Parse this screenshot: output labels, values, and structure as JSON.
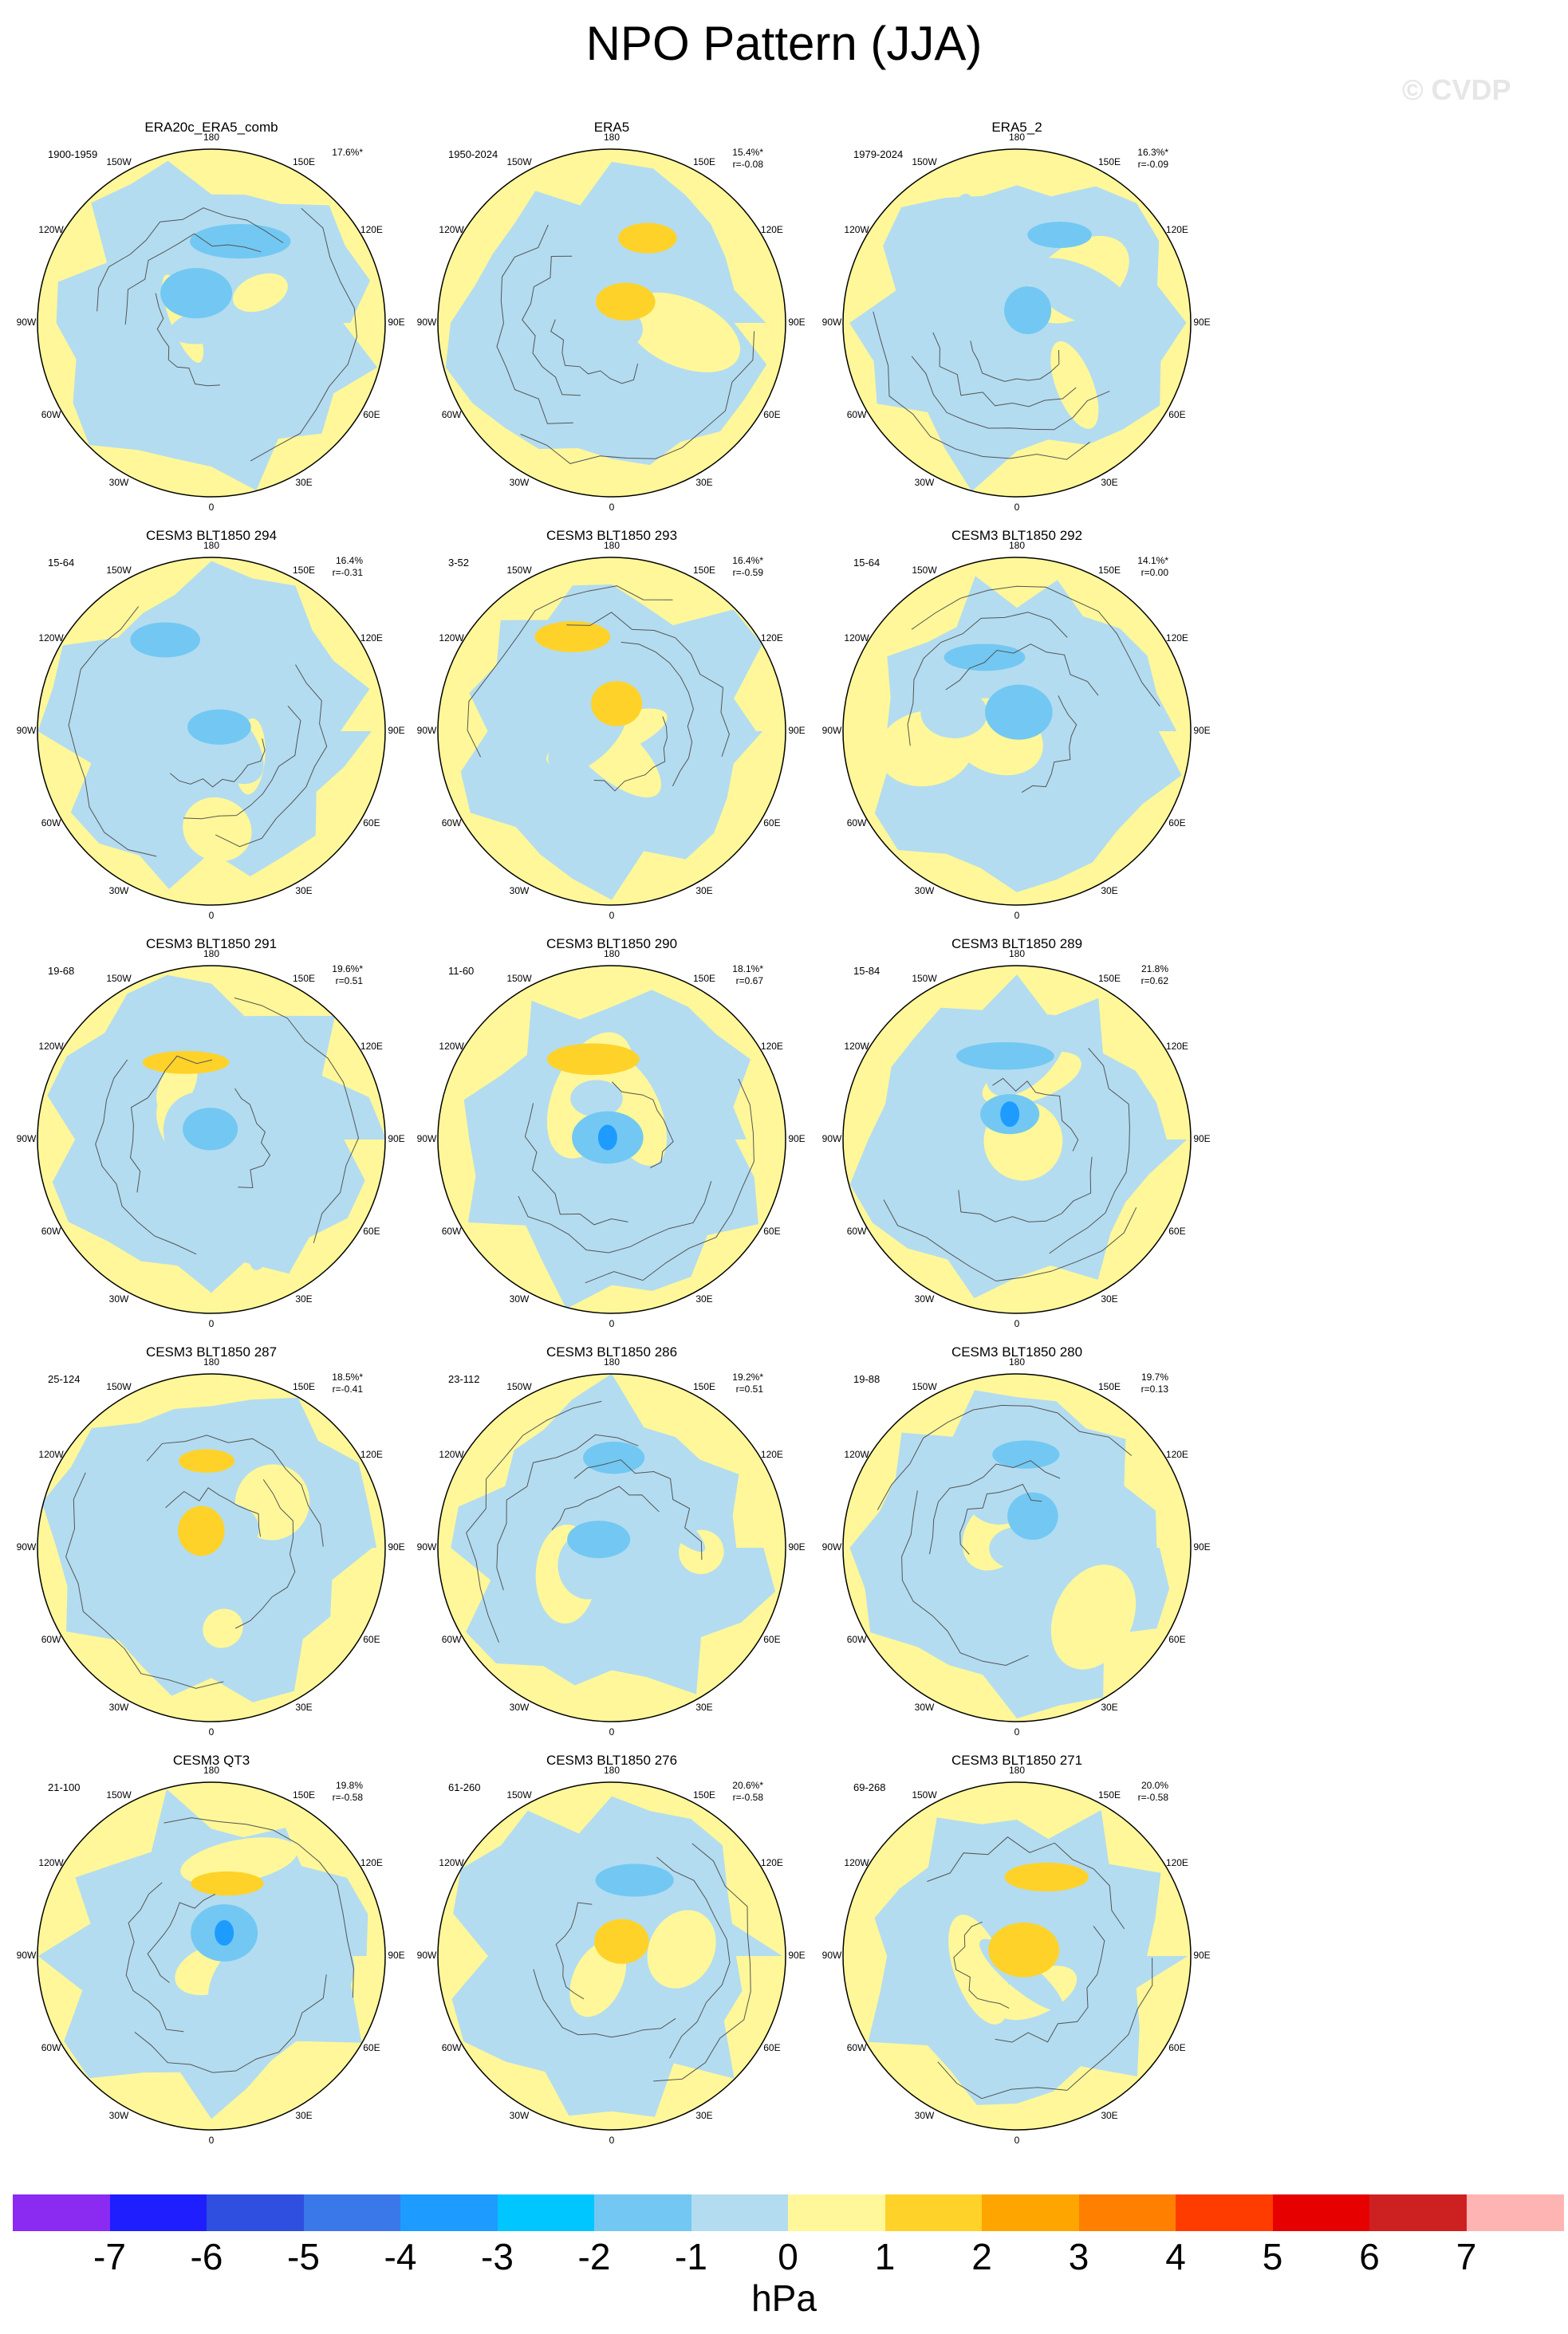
{
  "title": "NPO Pattern (JJA)",
  "watermark": "© CVDP",
  "longitude_labels": [
    "180",
    "150E",
    "120E",
    "90E",
    "60E",
    "30E",
    "0",
    "30W",
    "60W",
    "90W",
    "120W",
    "150W"
  ],
  "panels": [
    {
      "title": "ERA20c_ERA5_comb",
      "period": "1900-1959",
      "variance": "17.6%*",
      "corr": ""
    },
    {
      "title": "ERA5",
      "period": "1950-2024",
      "variance": "15.4%*",
      "corr": "r=-0.08"
    },
    {
      "title": "ERA5_2",
      "period": "1979-2024",
      "variance": "16.3%*",
      "corr": "r=-0.09"
    },
    {
      "title": "CESM3 BLT1850 294",
      "period": "15-64",
      "variance": "16.4%",
      "corr": "r=-0.31"
    },
    {
      "title": "CESM3 BLT1850 293",
      "period": "3-52",
      "variance": "16.4%*",
      "corr": "r=-0.59"
    },
    {
      "title": "CESM3 BLT1850 292",
      "period": "15-64",
      "variance": "14.1%*",
      "corr": "r=0.00"
    },
    {
      "title": "CESM3 BLT1850 291",
      "period": "19-68",
      "variance": "19.6%*",
      "corr": "r=0.51"
    },
    {
      "title": "CESM3 BLT1850 290",
      "period": "11-60",
      "variance": "18.1%*",
      "corr": "r=0.67"
    },
    {
      "title": "CESM3 BLT1850 289",
      "period": "15-84",
      "variance": "21.8%",
      "corr": "r=0.62"
    },
    {
      "title": "CESM3 BLT1850 287",
      "period": "25-124",
      "variance": "18.5%*",
      "corr": "r=-0.41"
    },
    {
      "title": "CESM3 BLT1850 286",
      "period": "23-112",
      "variance": "19.2%*",
      "corr": "r=0.51"
    },
    {
      "title": "CESM3 BLT1850 280",
      "period": "19-88",
      "variance": "19.7%",
      "corr": "r=0.13"
    },
    {
      "title": "CESM3 QT3",
      "period": "21-100",
      "variance": "19.8%",
      "corr": "r=-0.58"
    },
    {
      "title": "CESM3 BLT1850 276",
      "period": "61-260",
      "variance": "20.6%*",
      "corr": "r=-0.58"
    },
    {
      "title": "CESM3 BLT1850 271",
      "period": "69-268",
      "variance": "20.0%",
      "corr": "r=-0.58"
    }
  ],
  "colorbar": {
    "colors": [
      "#8b2af0",
      "#1e1eff",
      "#2e4fe0",
      "#3a78ea",
      "#1e9bff",
      "#00c6ff",
      "#72c8f2",
      "#b3dcf0",
      "#fff799",
      "#ffd22a",
      "#ffa500",
      "#ff7f00",
      "#ff3c00",
      "#e60000",
      "#cd2121",
      "#ffb4b4"
    ],
    "labels": [
      "-7",
      "-6",
      "-5",
      "-4",
      "-3",
      "-2",
      "-1",
      "0",
      "1",
      "2",
      "3",
      "4",
      "5",
      "6",
      "7"
    ],
    "units": "hPa"
  }
}
